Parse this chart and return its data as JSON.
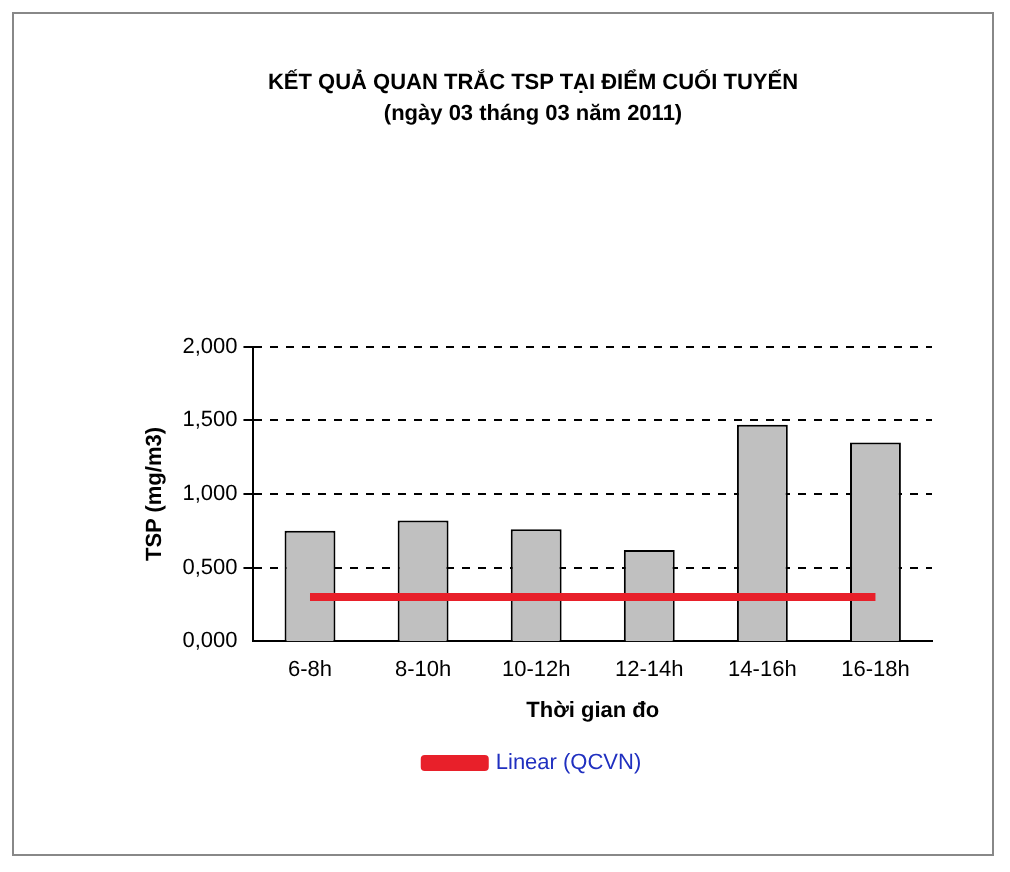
{
  "chart_data": {
    "type": "bar",
    "title": "KẾT QUẢ QUAN TRẮC TSP TẠI ĐIỂM CUỐI TUYẾN",
    "subtitle": "(ngày 03 tháng 03 năm 2011)",
    "xlabel": "Thời gian đo",
    "ylabel": "TSP (mg/m3)",
    "categories": [
      "6-8h",
      "8-10h",
      "10-12h",
      "12-14h",
      "14-16h",
      "16-18h"
    ],
    "series": [
      {
        "color": "#c0c0c0",
        "values": [
          0.75,
          0.82,
          0.76,
          0.62,
          1.47,
          1.35
        ]
      },
      {
        "type": "line",
        "name": "Linear (QCVN)",
        "color": "#e8202a",
        "values": [
          0.3,
          0.3,
          0.3,
          0.3,
          0.3,
          0.3
        ]
      }
    ],
    "ylim": [
      0,
      2
    ],
    "yticks": [
      {
        "value": 0,
        "label": "0,000"
      },
      {
        "value": 0.5,
        "label": "0,500"
      },
      {
        "value": 1,
        "label": "1,000"
      },
      {
        "value": 1.5,
        "label": "1,500"
      },
      {
        "value": 2,
        "label": "2,000"
      }
    ],
    "grid": "y",
    "legend": "bottom"
  }
}
